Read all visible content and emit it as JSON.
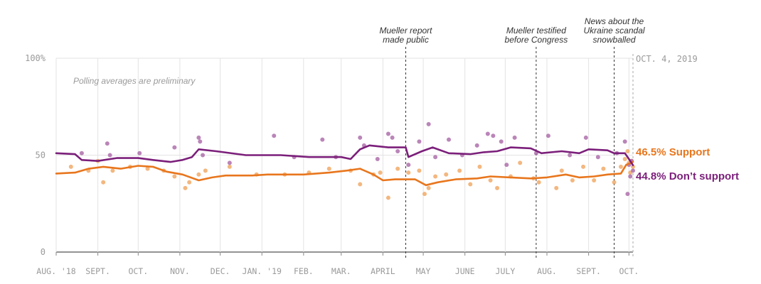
{
  "chart_data": {
    "type": "line",
    "title": "",
    "xlabel": "",
    "ylabel": "",
    "ylim": [
      0,
      100
    ],
    "y_ticks": [
      {
        "value": 100,
        "label": "100%"
      },
      {
        "value": 50,
        "label": "50"
      },
      {
        "value": 0,
        "label": "0"
      }
    ],
    "x_range": [
      "2018-08-01",
      "2019-10-04"
    ],
    "x_ticks": [
      {
        "date": "2018-08-01",
        "label": "AUG. '18"
      },
      {
        "date": "2018-09-01",
        "label": "SEPT."
      },
      {
        "date": "2018-10-01",
        "label": "OCT."
      },
      {
        "date": "2018-11-01",
        "label": "NOV."
      },
      {
        "date": "2018-12-01",
        "label": "DEC."
      },
      {
        "date": "2019-01-01",
        "label": "JAN. '19"
      },
      {
        "date": "2019-02-01",
        "label": "FEB."
      },
      {
        "date": "2019-03-01",
        "label": "MAR."
      },
      {
        "date": "2019-04-01",
        "label": "APRIL"
      },
      {
        "date": "2019-05-01",
        "label": "MAY"
      },
      {
        "date": "2019-06-01",
        "label": "JUNE"
      },
      {
        "date": "2019-07-01",
        "label": "JULY"
      },
      {
        "date": "2019-08-01",
        "label": "AUG."
      },
      {
        "date": "2019-09-01",
        "label": "SEPT."
      },
      {
        "date": "2019-10-01",
        "label": "OCT."
      }
    ],
    "grid": "vertical",
    "preliminary_note": "Polling averages are preliminary",
    "current_date_label": "OCT. 4, 2019",
    "annotations": [
      {
        "date": "2019-04-18",
        "lines": [
          "Mueller report",
          "made public"
        ]
      },
      {
        "date": "2019-07-24",
        "lines": [
          "Mueller testified",
          "before Congress"
        ]
      },
      {
        "date": "2019-09-20",
        "lines": [
          "News about the",
          "Ukraine scandal",
          "snowballed"
        ]
      }
    ],
    "series": [
      {
        "name": "Support",
        "end_label": "46.5% Support",
        "color": "#e8761d",
        "light_color": "#f0a55f",
        "line": [
          [
            "2018-08-01",
            40.5
          ],
          [
            "2018-08-15",
            41
          ],
          [
            "2018-08-25",
            43
          ],
          [
            "2018-09-05",
            44
          ],
          [
            "2018-09-18",
            43
          ],
          [
            "2018-10-01",
            44.5
          ],
          [
            "2018-10-12",
            44
          ],
          [
            "2018-10-22",
            41.5
          ],
          [
            "2018-11-03",
            40
          ],
          [
            "2018-11-15",
            37
          ],
          [
            "2018-11-25",
            38.5
          ],
          [
            "2018-12-05",
            39.5
          ],
          [
            "2018-12-25",
            39.5
          ],
          [
            "2019-01-05",
            40
          ],
          [
            "2019-02-01",
            40
          ],
          [
            "2019-02-20",
            41
          ],
          [
            "2019-03-05",
            42
          ],
          [
            "2019-03-15",
            43
          ],
          [
            "2019-03-25",
            40
          ],
          [
            "2019-04-01",
            37
          ],
          [
            "2019-04-10",
            37.5
          ],
          [
            "2019-04-25",
            37.5
          ],
          [
            "2019-05-03",
            34.5
          ],
          [
            "2019-05-12",
            36
          ],
          [
            "2019-05-25",
            37.5
          ],
          [
            "2019-06-10",
            38
          ],
          [
            "2019-06-20",
            39
          ],
          [
            "2019-07-05",
            38.5
          ],
          [
            "2019-07-20",
            38
          ],
          [
            "2019-08-01",
            38.5
          ],
          [
            "2019-08-15",
            40
          ],
          [
            "2019-08-25",
            38.5
          ],
          [
            "2019-09-05",
            39
          ],
          [
            "2019-09-15",
            40
          ],
          [
            "2019-09-25",
            40.5
          ],
          [
            "2019-09-29",
            45
          ],
          [
            "2019-10-04",
            46.5
          ]
        ],
        "points": [
          [
            "2018-08-12",
            44
          ],
          [
            "2018-08-25",
            42
          ],
          [
            "2018-09-01",
            47
          ],
          [
            "2018-09-05",
            36
          ],
          [
            "2018-09-12",
            42
          ],
          [
            "2018-09-25",
            44
          ],
          [
            "2018-10-08",
            43
          ],
          [
            "2018-10-20",
            42
          ],
          [
            "2018-10-28",
            39
          ],
          [
            "2018-11-05",
            33
          ],
          [
            "2018-11-08",
            36
          ],
          [
            "2018-11-15",
            40
          ],
          [
            "2018-11-20",
            42
          ],
          [
            "2018-12-08",
            44
          ],
          [
            "2018-12-28",
            40
          ],
          [
            "2019-01-18",
            40
          ],
          [
            "2019-02-05",
            41
          ],
          [
            "2019-02-20",
            43
          ],
          [
            "2019-03-08",
            42
          ],
          [
            "2019-03-15",
            35
          ],
          [
            "2019-03-25",
            40
          ],
          [
            "2019-03-30",
            41
          ],
          [
            "2019-04-05",
            28
          ],
          [
            "2019-04-12",
            43
          ],
          [
            "2019-04-20",
            41
          ],
          [
            "2019-04-28",
            42
          ],
          [
            "2019-05-02",
            30
          ],
          [
            "2019-05-05",
            33
          ],
          [
            "2019-05-10",
            39
          ],
          [
            "2019-05-18",
            40
          ],
          [
            "2019-05-28",
            42
          ],
          [
            "2019-06-05",
            35
          ],
          [
            "2019-06-12",
            44
          ],
          [
            "2019-06-20",
            37
          ],
          [
            "2019-06-25",
            33
          ],
          [
            "2019-07-05",
            39
          ],
          [
            "2019-07-12",
            46
          ],
          [
            "2019-07-22",
            38
          ],
          [
            "2019-07-26",
            36
          ],
          [
            "2019-08-08",
            33
          ],
          [
            "2019-08-12",
            42
          ],
          [
            "2019-08-20",
            37
          ],
          [
            "2019-08-28",
            44
          ],
          [
            "2019-09-05",
            37
          ],
          [
            "2019-09-12",
            43
          ],
          [
            "2019-09-20",
            36
          ],
          [
            "2019-09-25",
            44
          ],
          [
            "2019-09-28",
            48
          ],
          [
            "2019-09-30",
            52
          ],
          [
            "2019-10-01",
            46
          ],
          [
            "2019-10-02",
            41
          ],
          [
            "2019-10-03",
            47
          ],
          [
            "2019-10-04",
            44
          ]
        ]
      },
      {
        "name": "Don't support",
        "end_label": "44.8% Don’t support",
        "color": "#7b1f7a",
        "light_color": "#a967a6",
        "line": [
          [
            "2018-08-01",
            51
          ],
          [
            "2018-08-15",
            50.5
          ],
          [
            "2018-08-20",
            47.5
          ],
          [
            "2018-09-01",
            47
          ],
          [
            "2018-09-15",
            48.5
          ],
          [
            "2018-10-01",
            48.5
          ],
          [
            "2018-10-12",
            47.5
          ],
          [
            "2018-10-25",
            46.5
          ],
          [
            "2018-11-03",
            47.5
          ],
          [
            "2018-11-10",
            49
          ],
          [
            "2018-11-15",
            53
          ],
          [
            "2018-11-28",
            52
          ],
          [
            "2018-12-20",
            50
          ],
          [
            "2019-01-15",
            50
          ],
          [
            "2019-02-05",
            49
          ],
          [
            "2019-03-01",
            49
          ],
          [
            "2019-03-08",
            48
          ],
          [
            "2019-03-15",
            53
          ],
          [
            "2019-03-22",
            55
          ],
          [
            "2019-04-05",
            54
          ],
          [
            "2019-04-18",
            54
          ],
          [
            "2019-04-20",
            49
          ],
          [
            "2019-04-30",
            52
          ],
          [
            "2019-05-08",
            54
          ],
          [
            "2019-05-20",
            51
          ],
          [
            "2019-06-05",
            50.5
          ],
          [
            "2019-06-15",
            51.5
          ],
          [
            "2019-06-25",
            52
          ],
          [
            "2019-07-05",
            54
          ],
          [
            "2019-07-20",
            53.5
          ],
          [
            "2019-07-28",
            51
          ],
          [
            "2019-08-12",
            52
          ],
          [
            "2019-08-25",
            51
          ],
          [
            "2019-09-01",
            53
          ],
          [
            "2019-09-15",
            52.5
          ],
          [
            "2019-09-20",
            51
          ],
          [
            "2019-09-28",
            51
          ],
          [
            "2019-10-01",
            48
          ],
          [
            "2019-10-04",
            44.8
          ]
        ],
        "points": [
          [
            "2018-08-20",
            51
          ],
          [
            "2018-09-08",
            56
          ],
          [
            "2018-09-10",
            50
          ],
          [
            "2018-10-02",
            51
          ],
          [
            "2018-10-28",
            54
          ],
          [
            "2018-11-15",
            59
          ],
          [
            "2018-11-16",
            57
          ],
          [
            "2018-11-18",
            50
          ],
          [
            "2018-12-08",
            46
          ],
          [
            "2019-01-10",
            60
          ],
          [
            "2019-01-25",
            49
          ],
          [
            "2019-02-15",
            58
          ],
          [
            "2019-02-25",
            49
          ],
          [
            "2019-03-15",
            59
          ],
          [
            "2019-03-18",
            55
          ],
          [
            "2019-03-28",
            48
          ],
          [
            "2019-04-05",
            61
          ],
          [
            "2019-04-08",
            59
          ],
          [
            "2019-04-12",
            52
          ],
          [
            "2019-04-20",
            45
          ],
          [
            "2019-04-28",
            57
          ],
          [
            "2019-05-05",
            66
          ],
          [
            "2019-05-10",
            49
          ],
          [
            "2019-05-20",
            58
          ],
          [
            "2019-05-30",
            50
          ],
          [
            "2019-06-10",
            55
          ],
          [
            "2019-06-18",
            61
          ],
          [
            "2019-06-22",
            60
          ],
          [
            "2019-06-28",
            57
          ],
          [
            "2019-07-02",
            45
          ],
          [
            "2019-07-08",
            59
          ],
          [
            "2019-07-24",
            51
          ],
          [
            "2019-08-02",
            60
          ],
          [
            "2019-08-18",
            50
          ],
          [
            "2019-08-30",
            59
          ],
          [
            "2019-09-08",
            49
          ],
          [
            "2019-09-22",
            51
          ],
          [
            "2019-09-28",
            57
          ],
          [
            "2019-09-30",
            30
          ],
          [
            "2019-10-01",
            45
          ],
          [
            "2019-10-02",
            39
          ],
          [
            "2019-10-03",
            47
          ],
          [
            "2019-10-04",
            42
          ]
        ]
      }
    ]
  }
}
